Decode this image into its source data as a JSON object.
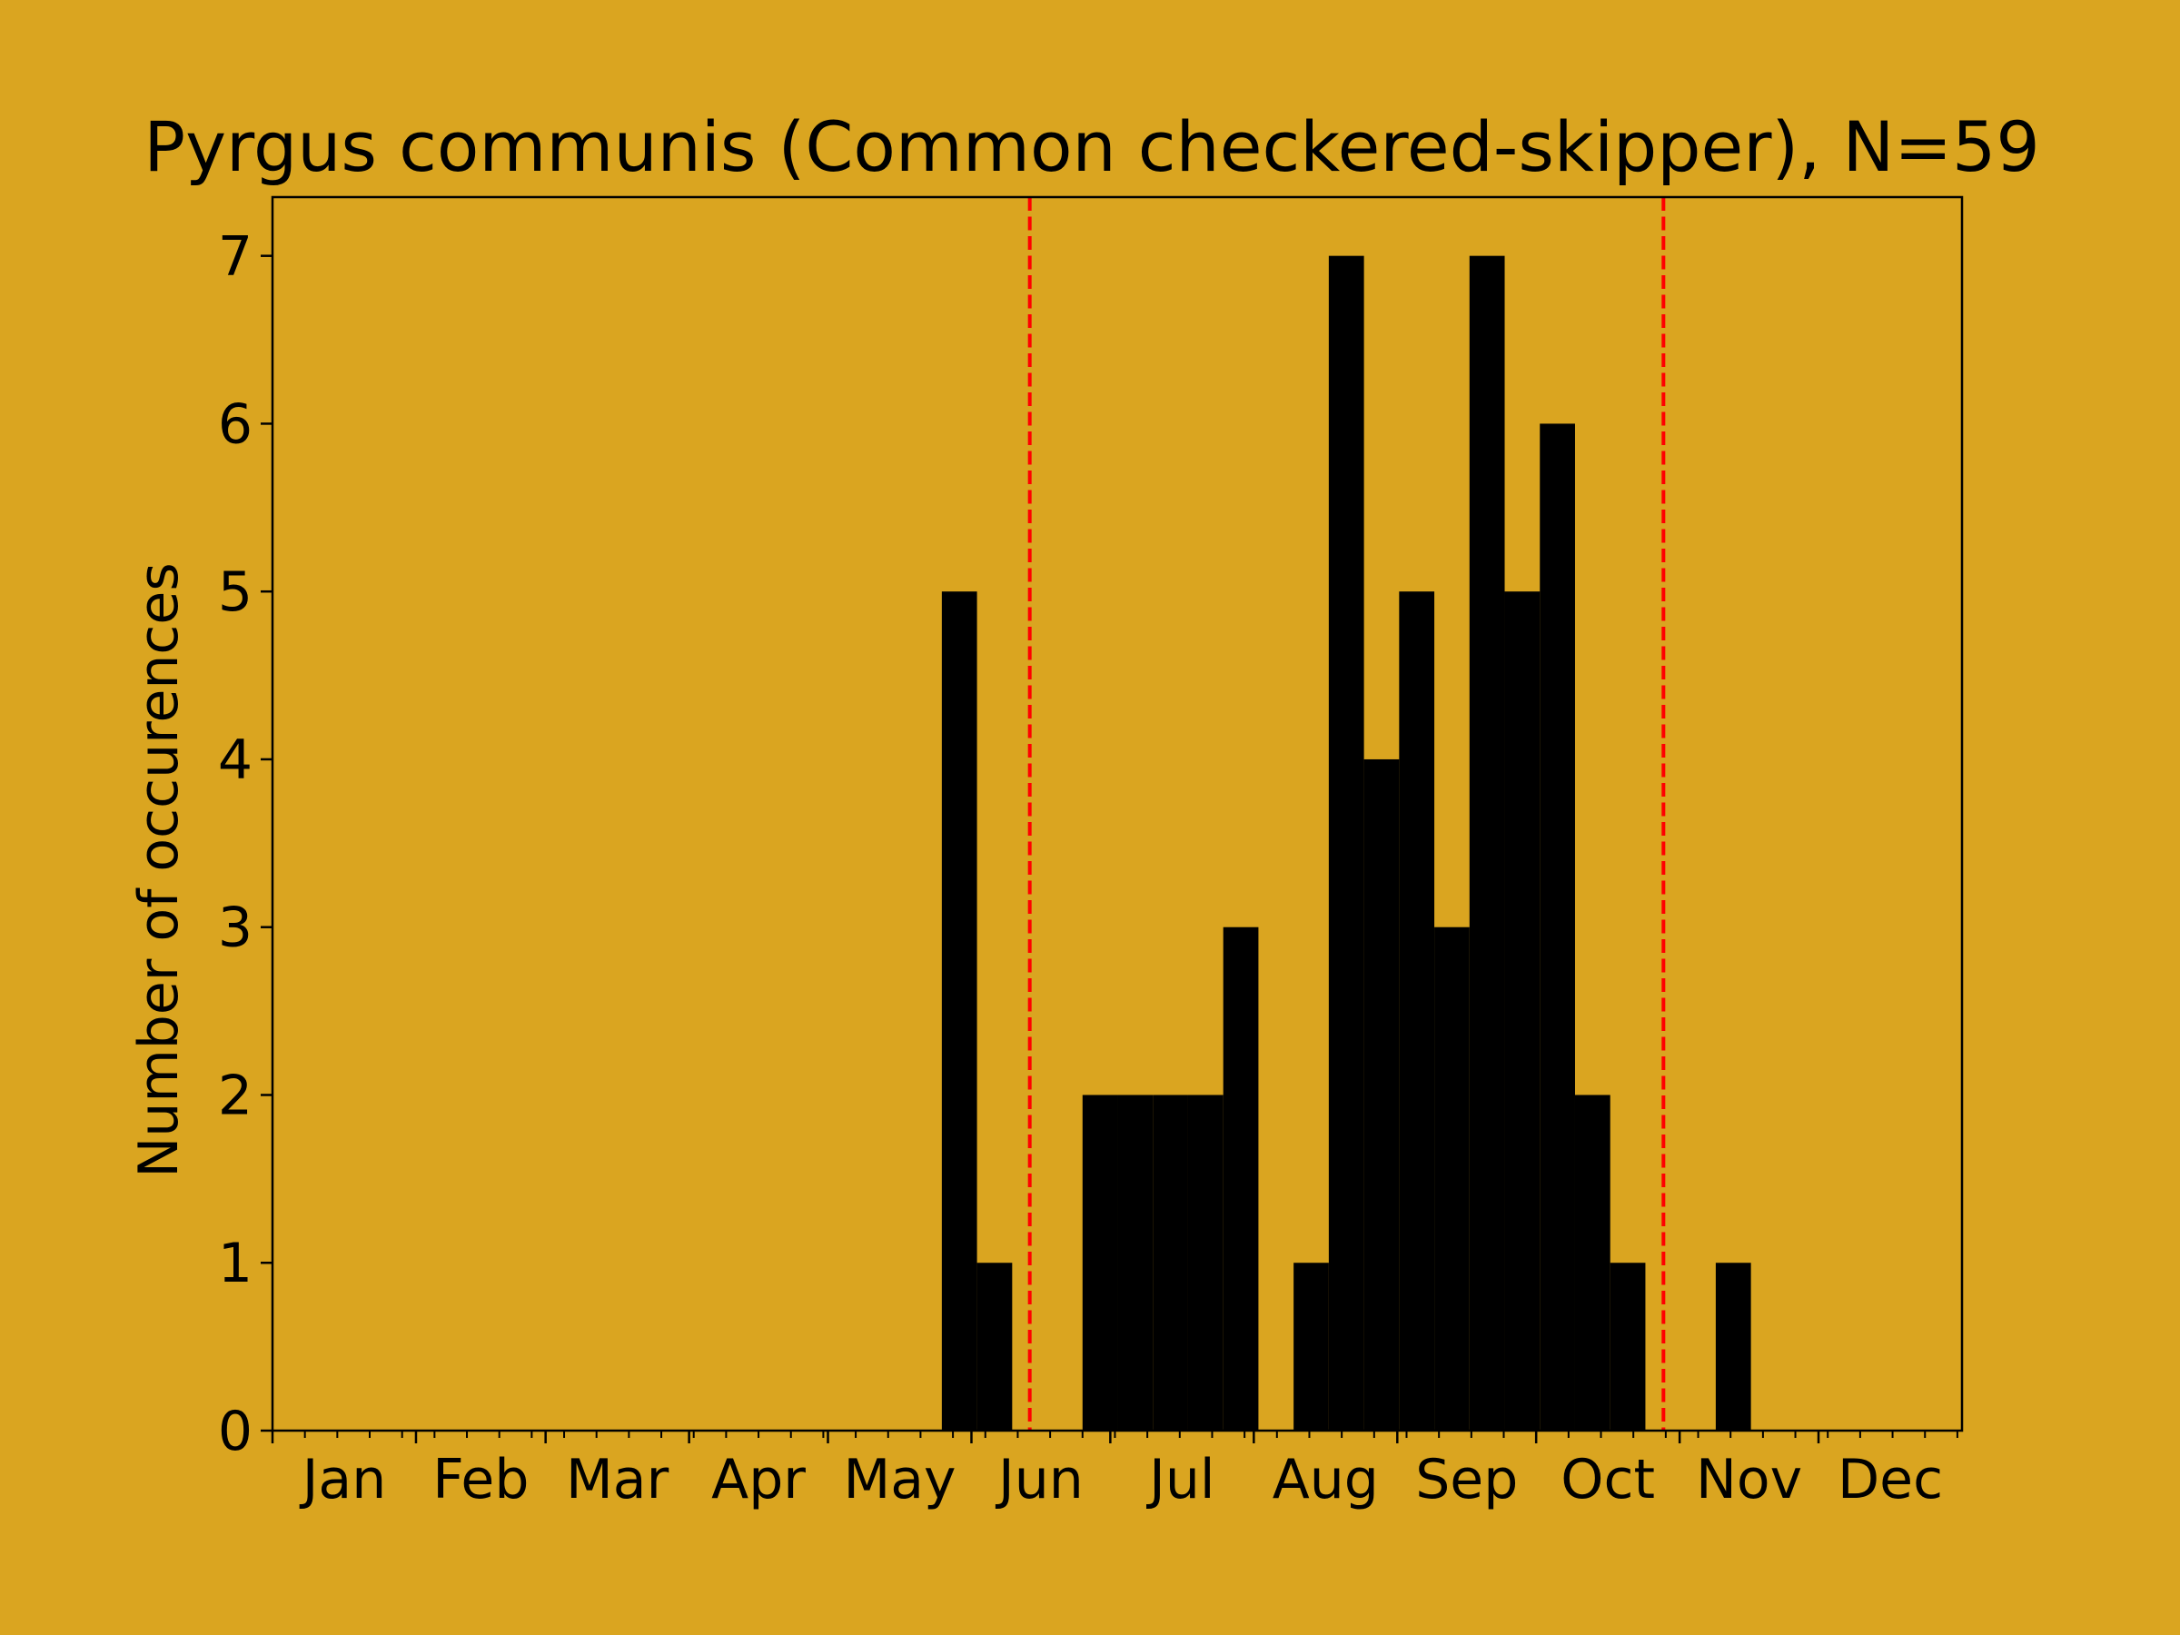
{
  "chart_data": {
    "type": "bar",
    "title": "Pyrgus communis (Common checkered-skipper), N=59",
    "xlabel": "",
    "ylabel": "Number of occurences",
    "xlim": [
      1,
      366
    ],
    "ylim": [
      0,
      7.35
    ],
    "yticks": [
      0,
      1,
      2,
      3,
      4,
      5,
      6,
      7
    ],
    "grid": false,
    "legend": "none",
    "month_labels": [
      "Jan",
      "Feb",
      "Mar",
      "Apr",
      "May",
      "Jun",
      "Jul",
      "Aug",
      "Sep",
      "Oct",
      "Nov",
      "Dec"
    ],
    "month_tick_days": [
      1,
      32,
      60,
      91,
      121,
      152,
      182,
      213,
      244,
      274,
      305,
      335
    ],
    "bin_width_days": 7.6,
    "bins_start_day": [
      145.6,
      153.2,
      176.0,
      183.6,
      191.2,
      198.8,
      206.4,
      221.6,
      229.2,
      236.8,
      244.4,
      252.0,
      259.6,
      267.2,
      274.8,
      282.4,
      290.0,
      312.8
    ],
    "values": [
      5,
      1,
      2,
      2,
      2,
      2,
      3,
      1,
      7,
      4,
      5,
      3,
      7,
      5,
      6,
      2,
      1,
      1
    ],
    "reference_lines_day": [
      164.6,
      301.5
    ],
    "colors": {
      "background": "#DAA520",
      "bars": "#000000",
      "reference_lines": "#FF0000"
    }
  }
}
